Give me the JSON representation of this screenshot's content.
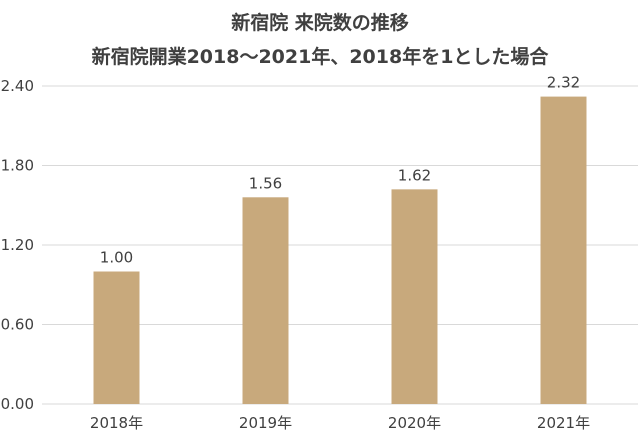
{
  "chart_data": {
    "type": "bar",
    "title": "新宿院 来院数の推移",
    "subtitle": "新宿院開業2018〜2021年、2018年を1とした場合",
    "categories": [
      "2018年",
      "2019年",
      "2020年",
      "2021年"
    ],
    "values": [
      1.0,
      1.56,
      1.62,
      2.32
    ],
    "value_labels": [
      "1.00",
      "1.56",
      "1.62",
      "2.32"
    ],
    "y_ticks": [
      "0.00",
      "0.60",
      "1.20",
      "1.80",
      "2.40"
    ],
    "y_tick_values": [
      0,
      0.6,
      1.2,
      1.8,
      2.4
    ],
    "ylim": [
      0,
      2.4
    ],
    "xlabel": "",
    "ylabel": "",
    "grid": true,
    "bar_color": "#c8a97c",
    "grid_color": "#d9d9d9"
  }
}
